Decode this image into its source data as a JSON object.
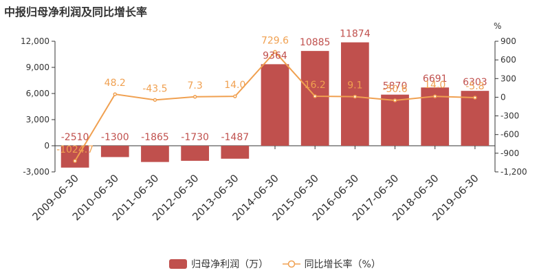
{
  "title": "中报归母净利润及同比增长率",
  "chart_data": {
    "type": "bar",
    "categories": [
      "2009-06-30",
      "2010-06-30",
      "2011-06-30",
      "2012-06-30",
      "2013-06-30",
      "2014-06-30",
      "2015-06-30",
      "2016-06-30",
      "2017-06-30",
      "2018-06-30",
      "2019-06-30"
    ],
    "series": [
      {
        "name": "归母净利润（万）",
        "type": "bar",
        "axis": "left",
        "color": "#c0504d",
        "values": [
          -2510,
          -1300,
          -1865,
          -1730,
          -1487,
          9364,
          10885,
          11874,
          5870,
          6691,
          6303
        ],
        "labels": [
          "-2510",
          "-1300",
          "-1865",
          "-1730",
          "-1487",
          "9364",
          "10885",
          "11874",
          "5870",
          "6691",
          "6303"
        ]
      },
      {
        "name": "同比增长率（%）",
        "type": "line",
        "axis": "right",
        "color": "#f0a050",
        "values": [
          -1024.7,
          48.2,
          -43.5,
          7.3,
          14.0,
          729.6,
          16.2,
          9.1,
          -50.6,
          14.0,
          -5.8
        ],
        "labels": [
          "-1024.7",
          "48.2",
          "-43.5",
          "7.3",
          "14.0",
          "729.6",
          "16.2",
          "9.1",
          "-50.6",
          "14.0",
          "-5.8"
        ]
      }
    ],
    "left_axis": {
      "ylim": [
        -3000,
        12000
      ],
      "ticks": [
        -3000,
        0,
        3000,
        6000,
        9000,
        12000
      ],
      "tick_labels": [
        "-3,000",
        "0",
        "3,000",
        "6,000",
        "9,000",
        "12,000"
      ]
    },
    "right_axis": {
      "unit": "%",
      "ylim": [
        -1200,
        900
      ],
      "ticks": [
        -1200,
        -900,
        -600,
        -300,
        0,
        300,
        600,
        900
      ],
      "tick_labels": [
        "-1,200",
        "-900",
        "-600",
        "-300",
        "0",
        "300",
        "600",
        "900"
      ]
    },
    "grid": false,
    "legend": "bottom"
  }
}
